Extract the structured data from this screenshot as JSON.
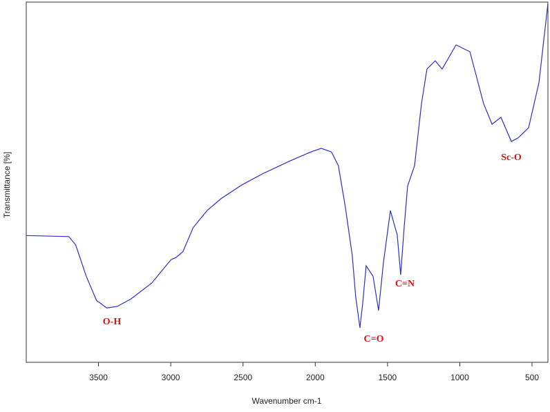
{
  "chart_data": {
    "type": "line",
    "xlabel": "Wavenumber cm-1",
    "ylabel": "Transmittance [%]",
    "x": [
      4000,
      3706,
      3658,
      3586,
      3514,
      3443,
      3371,
      3275,
      3132,
      2998,
      2964,
      2916,
      2845,
      2749,
      2653,
      2510,
      2366,
      2175,
      2031,
      1959,
      1888,
      1840,
      1792,
      1744,
      1720,
      1691,
      1672,
      1648,
      1600,
      1562,
      1528,
      1480,
      1447,
      1433,
      1409,
      1385,
      1361,
      1313,
      1265,
      1227,
      1170,
      1122,
      1026,
      930,
      835,
      777,
      715,
      643,
      596,
      524,
      452,
      390
    ],
    "series": [
      {
        "name": "spectrum",
        "color": "#2b2bd6",
        "values": [
          35.2,
          34.9,
          32.6,
          24.0,
          17.2,
          15.1,
          15.5,
          17.6,
          22.0,
          28.5,
          29.1,
          30.7,
          37.4,
          42.1,
          45.4,
          49.2,
          52.3,
          55.9,
          58.4,
          59.4,
          58.4,
          54.6,
          43.1,
          29.7,
          18.2,
          9.6,
          16.3,
          26.8,
          23.9,
          14.4,
          27.8,
          42.1,
          37.4,
          35.4,
          24.3,
          37.4,
          48.9,
          54.6,
          71.8,
          81.4,
          83.7,
          81.4,
          88.1,
          86.2,
          71.8,
          66.1,
          68.0,
          61.3,
          62.3,
          65.1,
          77.6,
          99.6
        ]
      }
    ],
    "xlim": [
      4000,
      390
    ],
    "ylim": [
      0,
      100
    ],
    "xticks": [
      3500,
      3000,
      2500,
      2000,
      1500,
      1000,
      500
    ],
    "annotations": [
      "O-H",
      "C=O",
      "C=N",
      "Sc-O"
    ]
  }
}
